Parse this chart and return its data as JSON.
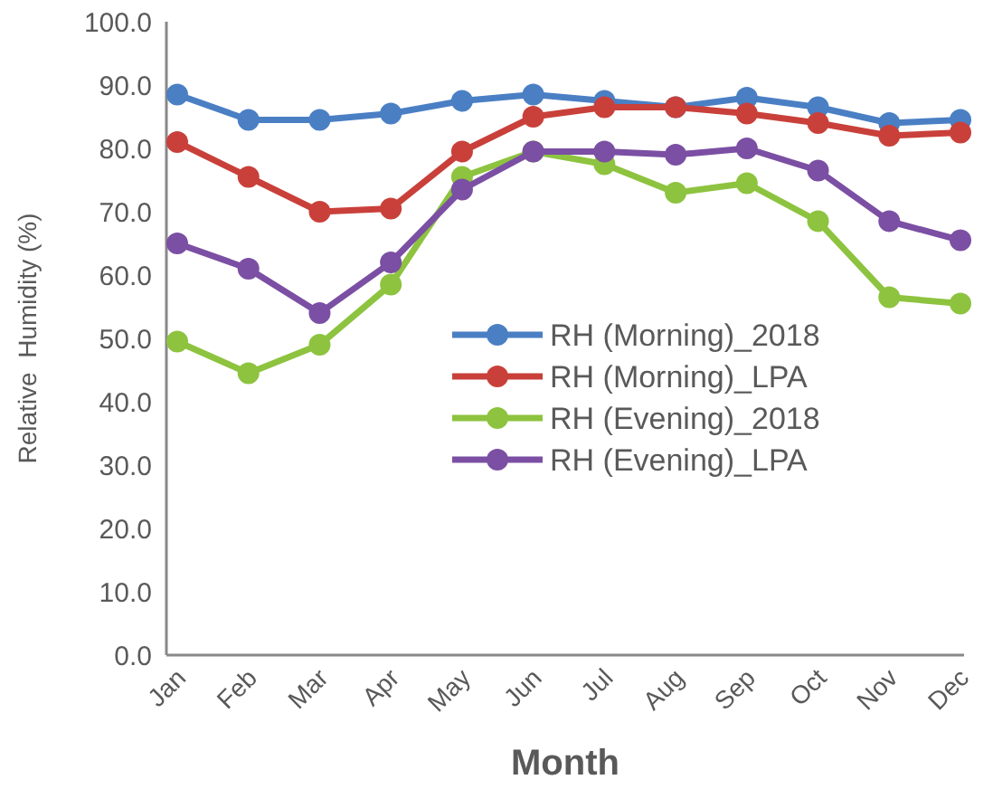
{
  "chart_data": {
    "type": "line",
    "xlabel": "Month",
    "ylabel": "Relative  Humidity (%)",
    "categories": [
      "Jan",
      "Feb",
      "Mar",
      "Apr",
      "May",
      "Jun",
      "Jul",
      "Aug",
      "Sep",
      "Oct",
      "Nov",
      "Dec"
    ],
    "series": [
      {
        "name": "RH (Morning)_2018",
        "color": "#4a7fc4",
        "values": [
          88.5,
          84.5,
          84.5,
          85.5,
          87.5,
          88.5,
          87.5,
          86.5,
          88,
          86.5,
          84,
          84.5
        ]
      },
      {
        "name": "RH (Morning)_LPA",
        "color": "#c9403a",
        "values": [
          81,
          75.5,
          70,
          70.5,
          79.5,
          85,
          86.5,
          86.5,
          85.5,
          84,
          82,
          82.5
        ]
      },
      {
        "name": "RH (Evening)_2018",
        "color": "#8dc33f",
        "values": [
          49.5,
          44.5,
          49,
          58.5,
          75.5,
          79.5,
          77.5,
          73,
          74.5,
          68.5,
          56.5,
          55.5
        ]
      },
      {
        "name": "RH (Evening)_LPA",
        "color": "#7b4fa3",
        "values": [
          65,
          61,
          54,
          62,
          73.5,
          79.5,
          79.5,
          79,
          80,
          76.5,
          68.5,
          65.5
        ]
      }
    ],
    "ylim": [
      0,
      100
    ],
    "yticks": [
      {
        "value": 0,
        "label": "0.0"
      },
      {
        "value": 10,
        "label": "10.0"
      },
      {
        "value": 20,
        "label": "20.0"
      },
      {
        "value": 30,
        "label": "30.0"
      },
      {
        "value": 40,
        "label": "40.0"
      },
      {
        "value": 50,
        "label": "50.0"
      },
      {
        "value": 60,
        "label": "60.0"
      },
      {
        "value": 70,
        "label": "70.0"
      },
      {
        "value": 80,
        "label": "80.0"
      },
      {
        "value": 90,
        "label": "90.0"
      },
      {
        "value": 100,
        "label": "100.0"
      }
    ],
    "marker": "circle",
    "legend": "center",
    "grid": false
  }
}
